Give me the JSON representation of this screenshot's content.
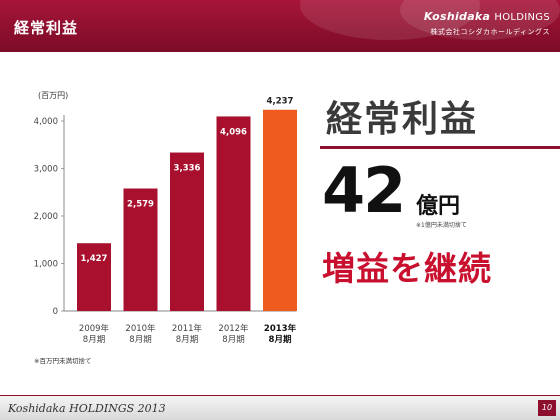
{
  "header": {
    "title": "経常利益",
    "brand_logo": "Koshidaka",
    "brand_holdings": "HOLDINGS",
    "brand_sub": "株式会社コシダカホールディングス"
  },
  "chart_data": {
    "type": "bar",
    "categories": [
      "2009年\n8月期",
      "2010年\n8月期",
      "2011年\n8月期",
      "2012年\n8月期",
      "2013年\n8月期"
    ],
    "values": [
      1427,
      2579,
      3336,
      4096,
      4237
    ],
    "value_labels": [
      "1,427",
      "2,579",
      "3,336",
      "4,096",
      "4,237"
    ],
    "unit_label": "(百万円)",
    "ylim": [
      0,
      4000
    ],
    "yticks": [
      0,
      1000,
      2000,
      3000,
      4000
    ],
    "ytick_labels": [
      "0",
      "1,000",
      "2,000",
      "3,000",
      "4,000"
    ],
    "colors": [
      "#a8102e",
      "#a8102e",
      "#a8102e",
      "#a8102e",
      "#ef5a1f"
    ],
    "highlight_index": 4,
    "grid": false,
    "legend": "none"
  },
  "right_panel": {
    "title": "経常利益",
    "big_number": "42",
    "big_unit": "億円",
    "unit_note": "※1億円未満切捨て",
    "message": "増益を継続"
  },
  "notes": {
    "bottom": "※百万円未満切捨て"
  },
  "footer": {
    "brand": "Koshidaka HOLDINGS 2013",
    "page": "10"
  }
}
